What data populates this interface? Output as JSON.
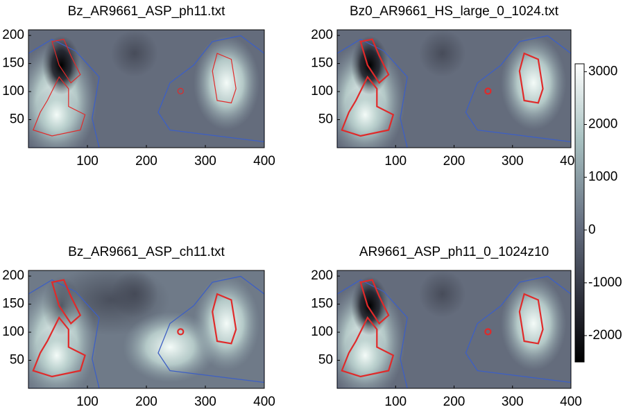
{
  "chart_data": [
    {
      "type": "image",
      "title": "Bz_AR9661_ASP_ph11.txt",
      "xlim": [
        0,
        400
      ],
      "ylim": [
        0,
        210
      ],
      "xticks": [
        100,
        200,
        300,
        400
      ],
      "yticks": [
        50,
        100,
        150,
        200
      ]
    },
    {
      "type": "image",
      "title": "Bz0_AR9661_HS_large_0_1024.txt",
      "xlim": [
        0,
        400
      ],
      "ylim": [
        0,
        210
      ],
      "xticks": [
        100,
        200,
        300,
        400
      ],
      "yticks": [
        50,
        100,
        150,
        200
      ]
    },
    {
      "type": "image",
      "title": "Bz_AR9661_ASP_ch11.txt",
      "xlim": [
        0,
        400
      ],
      "ylim": [
        0,
        210
      ],
      "xticks": [
        100,
        200,
        300,
        400
      ],
      "yticks": [
        50,
        100,
        150,
        200
      ]
    },
    {
      "type": "image",
      "title": "AR9661_ASP_ph11_0_1024z10",
      "xlim": [
        0,
        400
      ],
      "ylim": [
        0,
        210
      ],
      "xticks": [
        100,
        200,
        300,
        400
      ],
      "yticks": [
        50,
        100,
        150,
        200
      ]
    },
    {
      "type": "colorbar",
      "ylim": [
        -2500,
        3150
      ],
      "yticks": [
        -2000,
        -1000,
        0,
        1000,
        2000,
        3000
      ]
    }
  ]
}
